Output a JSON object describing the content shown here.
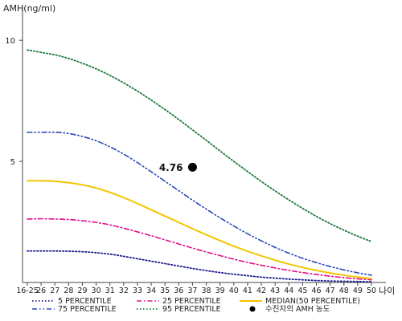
{
  "chart_data": {
    "type": "line",
    "title": "",
    "ylabel": "AMH(ng/ml)",
    "xlabel": "나이",
    "ylim": [
      0,
      11
    ],
    "yticks": [
      5,
      10
    ],
    "categories": [
      "16-25",
      "26",
      "27",
      "28",
      "29",
      "30",
      "31",
      "32",
      "33",
      "34",
      "35",
      "36",
      "37",
      "38",
      "39",
      "40",
      "41",
      "42",
      "43",
      "44",
      "45",
      "46",
      "47",
      "48",
      "49",
      "50"
    ],
    "grid": false,
    "legend_position": "bottom",
    "series": [
      {
        "name": "5 PERCENTILE",
        "color": "#1a1a8c",
        "dash": "dotted",
        "values": [
          1.3,
          1.3,
          1.3,
          1.29,
          1.27,
          1.23,
          1.17,
          1.08,
          0.98,
          0.88,
          0.78,
          0.68,
          0.58,
          0.49,
          0.41,
          0.34,
          0.28,
          0.22,
          0.18,
          0.14,
          0.11,
          0.08,
          0.06,
          0.05,
          0.04,
          0.03
        ]
      },
      {
        "name": "25 PERCENTILE",
        "color": "#e0108a",
        "dash": "dashdot",
        "values": [
          2.62,
          2.63,
          2.62,
          2.6,
          2.55,
          2.48,
          2.38,
          2.24,
          2.09,
          1.93,
          1.76,
          1.59,
          1.42,
          1.26,
          1.11,
          0.96,
          0.83,
          0.71,
          0.6,
          0.5,
          0.41,
          0.33,
          0.26,
          0.2,
          0.15,
          0.11
        ]
      },
      {
        "name": "MEDIAN(50 PERCENTILE)",
        "color": "#f2c500",
        "dash": "solid",
        "values": [
          4.2,
          4.2,
          4.18,
          4.12,
          4.03,
          3.9,
          3.72,
          3.5,
          3.26,
          3.0,
          2.74,
          2.48,
          2.22,
          1.97,
          1.73,
          1.5,
          1.29,
          1.1,
          0.92,
          0.76,
          0.62,
          0.5,
          0.39,
          0.3,
          0.22,
          0.16
        ]
      },
      {
        "name": "75 PERCENTILE",
        "color": "#2a48b8",
        "dash": "dashdotdot",
        "values": [
          6.2,
          6.2,
          6.2,
          6.15,
          6.03,
          5.85,
          5.6,
          5.3,
          4.95,
          4.57,
          4.18,
          3.79,
          3.4,
          3.03,
          2.67,
          2.33,
          2.01,
          1.72,
          1.45,
          1.21,
          1.0,
          0.82,
          0.66,
          0.52,
          0.4,
          0.3
        ]
      },
      {
        "name": "95 PERCENTILE",
        "color": "#1e7a3c",
        "dash": "dotted",
        "values": [
          9.6,
          9.5,
          9.4,
          9.25,
          9.05,
          8.82,
          8.55,
          8.24,
          7.9,
          7.53,
          7.14,
          6.73,
          6.3,
          5.87,
          5.43,
          5.0,
          4.58,
          4.17,
          3.78,
          3.41,
          3.06,
          2.73,
          2.43,
          2.16,
          1.91,
          1.69
        ]
      }
    ],
    "annotation": {
      "name": "수진자의 AMH 농도",
      "category": "37",
      "value": 4.76,
      "label": "4.76"
    }
  }
}
